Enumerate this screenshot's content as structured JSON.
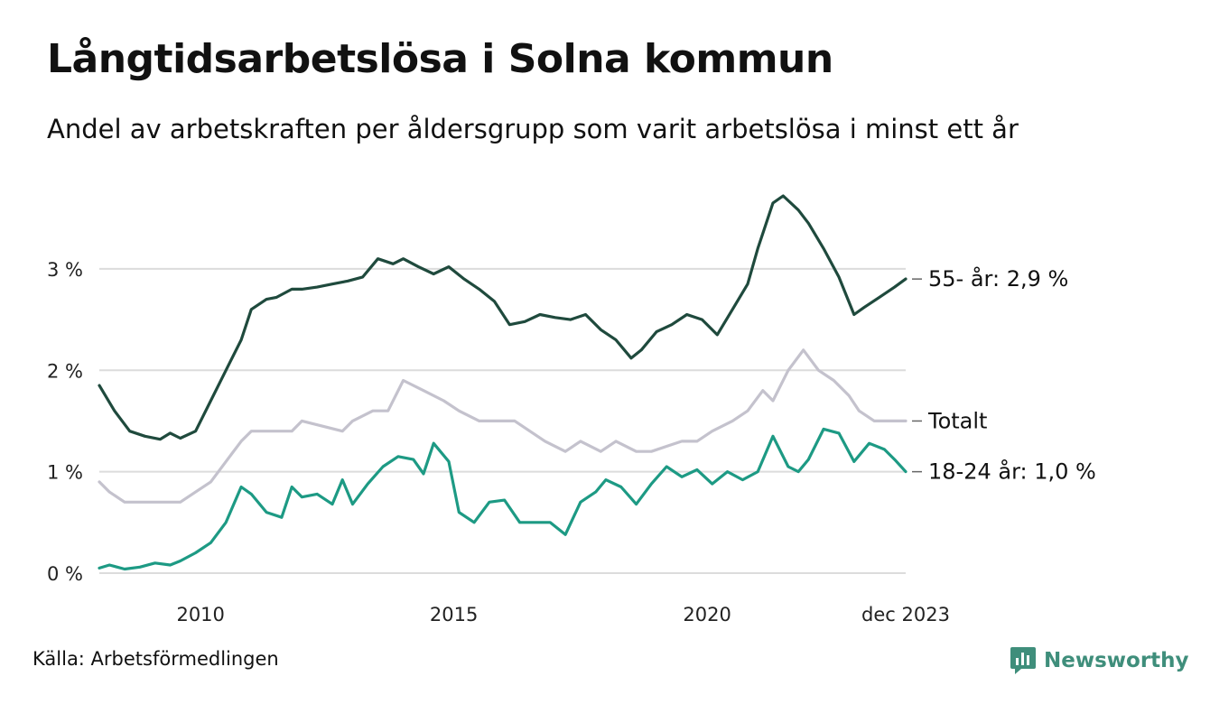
{
  "title": "Långtidsarbetslösa i Solna kommun",
  "subtitle": "Andel av arbetskraften per åldersgrupp som varit arbetslösa i minst ett år",
  "source": "Källa: Arbetsförmedlingen",
  "brand": "Newsworthy",
  "colors": {
    "older": "#1f4a3d",
    "total": "#c4c2cd",
    "young": "#1d9a84",
    "grid": "#dcdcdc",
    "brand": "#3f8e7b"
  },
  "chart_data": {
    "type": "line",
    "title": "Långtidsarbetslösa i Solna kommun",
    "ylabel": "",
    "xlabel": "",
    "ylim": [
      0,
      3.8
    ],
    "xlim": [
      2008.0,
      2023.92
    ],
    "yticks": [
      0,
      1,
      2,
      3
    ],
    "ytick_labels": [
      "0 %",
      "1 %",
      "2 %",
      "3 %"
    ],
    "xticks": [
      2010,
      2015,
      2020,
      2023.92
    ],
    "xtick_labels": [
      "2010",
      "2015",
      "2020",
      "dec 2023"
    ],
    "series": [
      {
        "name": "55- år",
        "label": "55- år: 2,9 %",
        "color": "#1f4a3d",
        "x": [
          2008.0,
          2008.3,
          2008.6,
          2008.9,
          2009.2,
          2009.4,
          2009.6,
          2009.9,
          2010.2,
          2010.5,
          2010.8,
          2011.0,
          2011.3,
          2011.5,
          2011.8,
          2012.0,
          2012.3,
          2012.6,
          2012.9,
          2013.2,
          2013.5,
          2013.8,
          2014.0,
          2014.3,
          2014.6,
          2014.9,
          2015.2,
          2015.5,
          2015.8,
          2016.1,
          2016.4,
          2016.7,
          2017.0,
          2017.3,
          2017.6,
          2017.9,
          2018.2,
          2018.5,
          2018.7,
          2019.0,
          2019.3,
          2019.6,
          2019.9,
          2020.2,
          2020.5,
          2020.8,
          2021.0,
          2021.3,
          2021.5,
          2021.8,
          2022.0,
          2022.3,
          2022.6,
          2022.9,
          2023.1,
          2023.4,
          2023.7,
          2023.92
        ],
        "values": [
          1.85,
          1.6,
          1.4,
          1.35,
          1.32,
          1.38,
          1.33,
          1.4,
          1.7,
          2.0,
          2.3,
          2.6,
          2.7,
          2.72,
          2.8,
          2.8,
          2.82,
          2.85,
          2.88,
          2.92,
          3.1,
          3.05,
          3.1,
          3.02,
          2.95,
          3.02,
          2.9,
          2.8,
          2.68,
          2.45,
          2.48,
          2.55,
          2.52,
          2.5,
          2.55,
          2.4,
          2.3,
          2.12,
          2.2,
          2.38,
          2.45,
          2.55,
          2.5,
          2.35,
          2.6,
          2.85,
          3.2,
          3.65,
          3.72,
          3.58,
          3.45,
          3.2,
          2.92,
          2.55,
          2.62,
          2.72,
          2.82,
          2.9
        ]
      },
      {
        "name": "Totalt",
        "label": "Totalt",
        "color": "#c4c2cd",
        "x": [
          2008.0,
          2008.2,
          2008.5,
          2008.8,
          2009.2,
          2009.6,
          2009.9,
          2010.2,
          2010.5,
          2010.8,
          2011.0,
          2011.4,
          2011.8,
          2012.0,
          2012.4,
          2012.8,
          2013.0,
          2013.4,
          2013.7,
          2014.0,
          2014.4,
          2014.8,
          2015.1,
          2015.5,
          2015.8,
          2016.2,
          2016.5,
          2016.8,
          2017.2,
          2017.5,
          2017.9,
          2018.2,
          2018.6,
          2018.9,
          2019.2,
          2019.5,
          2019.8,
          2020.1,
          2020.5,
          2020.8,
          2021.1,
          2021.3,
          2021.6,
          2021.9,
          2022.2,
          2022.5,
          2022.8,
          2023.0,
          2023.3,
          2023.6,
          2023.92
        ],
        "values": [
          0.9,
          0.8,
          0.7,
          0.7,
          0.7,
          0.7,
          0.8,
          0.9,
          1.1,
          1.3,
          1.4,
          1.4,
          1.4,
          1.5,
          1.45,
          1.4,
          1.5,
          1.6,
          1.6,
          1.9,
          1.8,
          1.7,
          1.6,
          1.5,
          1.5,
          1.5,
          1.4,
          1.3,
          1.2,
          1.3,
          1.2,
          1.3,
          1.2,
          1.2,
          1.25,
          1.3,
          1.3,
          1.4,
          1.5,
          1.6,
          1.8,
          1.7,
          2.0,
          2.2,
          2.0,
          1.9,
          1.75,
          1.6,
          1.5,
          1.5,
          1.5
        ]
      },
      {
        "name": "18-24 år",
        "label": "18-24 år: 1,0 %",
        "color": "#1d9a84",
        "x": [
          2008.0,
          2008.2,
          2008.5,
          2008.8,
          2009.1,
          2009.4,
          2009.6,
          2009.9,
          2010.2,
          2010.5,
          2010.8,
          2011.0,
          2011.3,
          2011.6,
          2011.8,
          2012.0,
          2012.3,
          2012.6,
          2012.8,
          2013.0,
          2013.3,
          2013.6,
          2013.9,
          2014.2,
          2014.4,
          2014.6,
          2014.9,
          2015.1,
          2015.4,
          2015.7,
          2016.0,
          2016.3,
          2016.6,
          2016.9,
          2017.2,
          2017.5,
          2017.8,
          2018.0,
          2018.3,
          2018.6,
          2018.9,
          2019.2,
          2019.5,
          2019.8,
          2020.1,
          2020.4,
          2020.7,
          2021.0,
          2021.3,
          2021.6,
          2021.8,
          2022.0,
          2022.3,
          2022.6,
          2022.9,
          2023.2,
          2023.5,
          2023.7,
          2023.92
        ],
        "values": [
          0.05,
          0.08,
          0.04,
          0.06,
          0.1,
          0.08,
          0.12,
          0.2,
          0.3,
          0.5,
          0.85,
          0.78,
          0.6,
          0.55,
          0.85,
          0.75,
          0.78,
          0.68,
          0.92,
          0.68,
          0.88,
          1.05,
          1.15,
          1.12,
          0.98,
          1.28,
          1.1,
          0.6,
          0.5,
          0.7,
          0.72,
          0.5,
          0.5,
          0.5,
          0.38,
          0.7,
          0.8,
          0.92,
          0.85,
          0.68,
          0.88,
          1.05,
          0.95,
          1.02,
          0.88,
          1.0,
          0.92,
          1.0,
          1.35,
          1.05,
          1.0,
          1.12,
          1.42,
          1.38,
          1.1,
          1.28,
          1.22,
          1.12,
          1.0
        ]
      }
    ]
  }
}
